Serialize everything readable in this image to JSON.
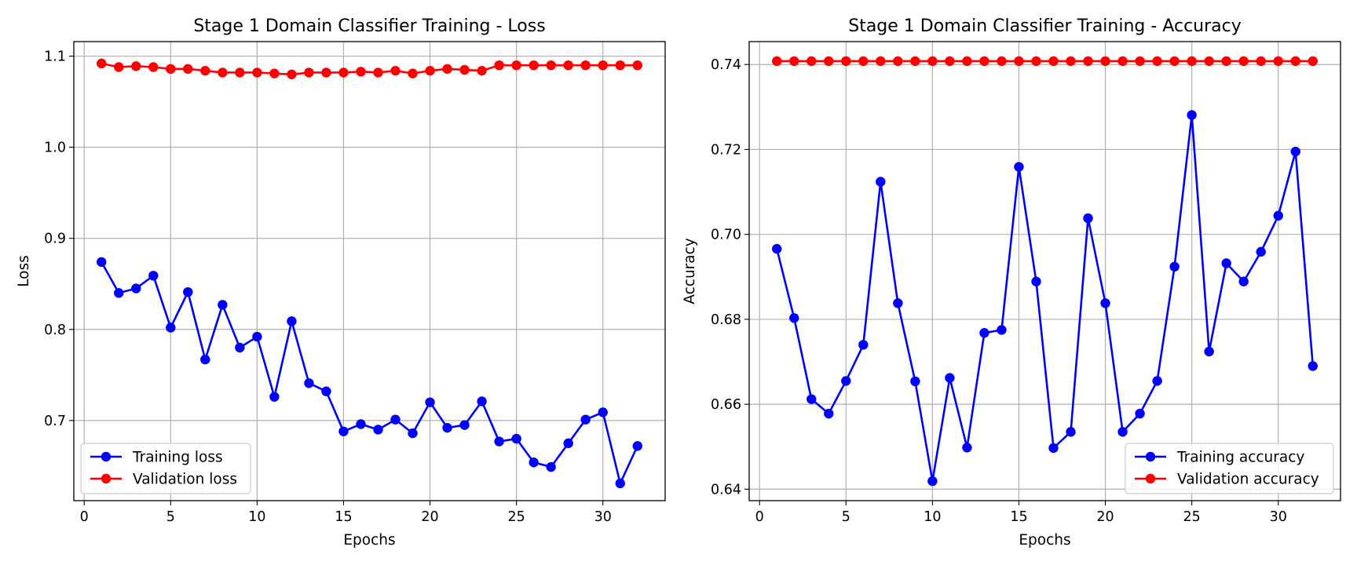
{
  "chart_data": [
    {
      "type": "line",
      "title": "Stage 1 Domain Classifier Training - Loss",
      "xlabel": "Epochs",
      "ylabel": "Loss",
      "xlim": [
        -0.6,
        33.6
      ],
      "ylim": [
        0.612,
        1.116
      ],
      "xticks": [
        0,
        5,
        10,
        15,
        20,
        25,
        30
      ],
      "xtick_labels": [
        "0",
        "5",
        "10",
        "15",
        "20",
        "25",
        "30"
      ],
      "yticks": [
        0.7,
        0.8,
        0.9,
        1.0,
        1.1
      ],
      "ytick_labels": [
        "0.7",
        "0.8",
        "0.9",
        "1.0",
        "1.1"
      ],
      "grid": true,
      "legend_position": "lower-left",
      "x": [
        1,
        2,
        3,
        4,
        5,
        6,
        7,
        8,
        9,
        10,
        11,
        12,
        13,
        14,
        15,
        16,
        17,
        18,
        19,
        20,
        21,
        22,
        23,
        24,
        25,
        26,
        27,
        28,
        29,
        30,
        31,
        32
      ],
      "series": [
        {
          "name": "Training loss",
          "color": "#0000ff",
          "values": [
            0.874,
            0.84,
            0.845,
            0.859,
            0.802,
            0.841,
            0.767,
            0.827,
            0.78,
            0.792,
            0.726,
            0.809,
            0.741,
            0.732,
            0.688,
            0.696,
            0.69,
            0.701,
            0.686,
            0.72,
            0.692,
            0.695,
            0.721,
            0.677,
            0.68,
            0.654,
            0.649,
            0.675,
            0.701,
            0.709,
            0.631,
            0.672
          ]
        },
        {
          "name": "Validation loss",
          "color": "#ff0000",
          "values": [
            1.092,
            1.088,
            1.089,
            1.088,
            1.086,
            1.086,
            1.084,
            1.082,
            1.082,
            1.082,
            1.081,
            1.08,
            1.082,
            1.082,
            1.082,
            1.083,
            1.082,
            1.084,
            1.081,
            1.084,
            1.086,
            1.085,
            1.084,
            1.09,
            1.09,
            1.09,
            1.09,
            1.09,
            1.09,
            1.09,
            1.09,
            1.09
          ]
        }
      ]
    },
    {
      "type": "line",
      "title": "Stage 1 Domain Classifier Training - Accuracy",
      "xlabel": "Epochs",
      "ylabel": "Accuracy",
      "xlim": [
        -0.6,
        33.6
      ],
      "ylim": [
        0.6373,
        0.7454
      ],
      "xticks": [
        0,
        5,
        10,
        15,
        20,
        25,
        30
      ],
      "xtick_labels": [
        "0",
        "5",
        "10",
        "15",
        "20",
        "25",
        "30"
      ],
      "yticks": [
        0.64,
        0.66,
        0.68,
        0.7,
        0.72,
        0.74
      ],
      "ytick_labels": [
        "0.64",
        "0.66",
        "0.68",
        "0.70",
        "0.72",
        "0.74"
      ],
      "grid": true,
      "legend_position": "lower-right",
      "x": [
        1,
        2,
        3,
        4,
        5,
        6,
        7,
        8,
        9,
        10,
        11,
        12,
        13,
        14,
        15,
        16,
        17,
        18,
        19,
        20,
        21,
        22,
        23,
        24,
        25,
        26,
        27,
        28,
        29,
        30,
        31,
        32
      ],
      "series": [
        {
          "name": "Training accuracy",
          "color": "#0000ff",
          "values": [
            0.6966,
            0.6803,
            0.6612,
            0.6578,
            0.6655,
            0.674,
            0.7124,
            0.6838,
            0.6654,
            0.6419,
            0.6662,
            0.6498,
            0.6768,
            0.6775,
            0.7159,
            0.6889,
            0.6497,
            0.6535,
            0.7038,
            0.6838,
            0.6535,
            0.6578,
            0.6655,
            0.6924,
            0.7281,
            0.6724,
            0.6932,
            0.6889,
            0.6959,
            0.7044,
            0.7195,
            0.669
          ]
        },
        {
          "name": "Validation accuracy",
          "color": "#ff0000",
          "values": [
            0.7408,
            0.7408,
            0.7408,
            0.7408,
            0.7408,
            0.7408,
            0.7408,
            0.7408,
            0.7408,
            0.7408,
            0.7408,
            0.7408,
            0.7408,
            0.7408,
            0.7408,
            0.7408,
            0.7408,
            0.7408,
            0.7408,
            0.7408,
            0.7408,
            0.7408,
            0.7408,
            0.7408,
            0.7408,
            0.7408,
            0.7408,
            0.7408,
            0.7408,
            0.7408,
            0.7408,
            0.7408
          ]
        }
      ]
    }
  ]
}
